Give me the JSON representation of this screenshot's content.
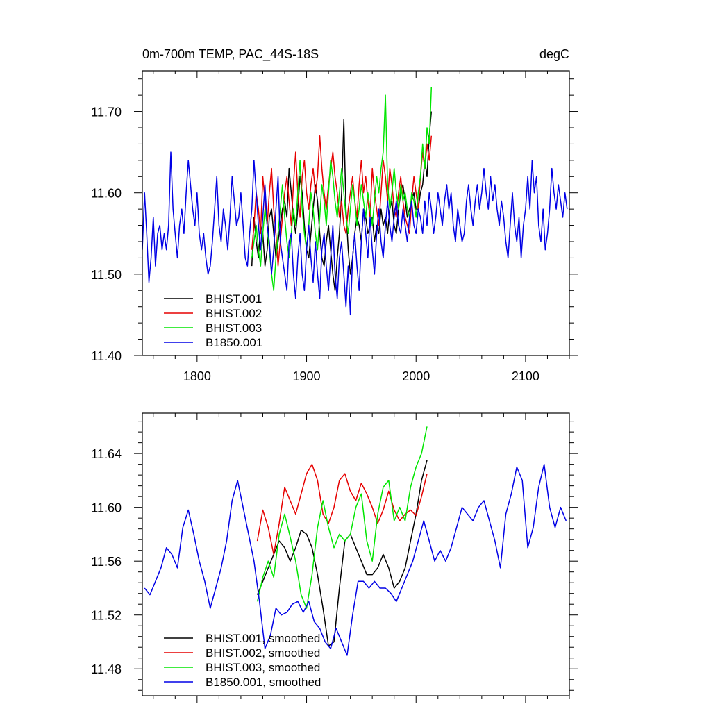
{
  "chart_data": [
    {
      "type": "line",
      "title": "0m-700m TEMP, PAC_44S-18S",
      "units": "degC",
      "xlim": [
        1750,
        2140
      ],
      "ylim": [
        11.4,
        11.75
      ],
      "x_ticks": [
        1800,
        1900,
        2000,
        2100
      ],
      "x_tick_labels": [
        "1800",
        "1900",
        "2000",
        "2100"
      ],
      "y_ticks": [
        11.4,
        11.5,
        11.6,
        11.7
      ],
      "y_tick_labels": [
        "11.40",
        "11.50",
        "11.60",
        "11.70"
      ],
      "show_x_tick_labels": true,
      "legend_position": "bottom-left",
      "series": [
        {
          "name": "BHIST.001",
          "color": "#000000",
          "x_start": 1850,
          "x_end": 2014,
          "step": 2,
          "values": [
            11.51,
            11.57,
            11.54,
            11.52,
            11.56,
            11.55,
            11.51,
            11.53,
            11.57,
            11.58,
            11.55,
            11.52,
            11.54,
            11.56,
            11.58,
            11.59,
            11.57,
            11.63,
            11.6,
            11.57,
            11.55,
            11.58,
            11.62,
            11.6,
            11.56,
            11.53,
            11.52,
            11.55,
            11.58,
            11.61,
            11.59,
            11.55,
            11.52,
            11.51,
            11.54,
            11.56,
            11.53,
            11.5,
            11.48,
            11.52,
            11.55,
            11.6,
            11.69,
            11.58,
            11.53,
            11.5,
            11.52,
            11.55,
            11.57,
            11.56,
            11.54,
            11.58,
            11.57,
            11.55,
            11.56,
            11.57,
            11.54,
            11.56,
            11.55,
            11.58,
            11.56,
            11.57,
            11.55,
            11.58,
            11.59,
            11.56,
            11.55,
            11.58,
            11.6,
            11.61,
            11.59,
            11.57,
            11.58,
            11.59,
            11.6,
            11.58,
            11.58,
            11.6,
            11.61,
            11.64,
            11.62,
            11.67,
            11.7
          ]
        },
        {
          "name": "BHIST.002",
          "color": "#e60000",
          "x_start": 1850,
          "x_end": 2014,
          "step": 2,
          "values": [
            11.53,
            11.56,
            11.6,
            11.58,
            11.55,
            11.62,
            11.59,
            11.56,
            11.6,
            11.63,
            11.58,
            11.55,
            11.51,
            11.54,
            11.57,
            11.6,
            11.62,
            11.59,
            11.56,
            11.61,
            11.65,
            11.6,
            11.57,
            11.62,
            11.64,
            11.6,
            11.58,
            11.61,
            11.63,
            11.6,
            11.62,
            11.67,
            11.63,
            11.6,
            11.58,
            11.61,
            11.63,
            11.65,
            11.62,
            11.6,
            11.57,
            11.59,
            11.56,
            11.55,
            11.58,
            11.6,
            11.62,
            11.59,
            11.57,
            11.61,
            11.64,
            11.6,
            11.62,
            11.59,
            11.57,
            11.63,
            11.6,
            11.58,
            11.56,
            11.6,
            11.64,
            11.62,
            11.59,
            11.63,
            11.61,
            11.58,
            11.57,
            11.6,
            11.62,
            11.59,
            11.57,
            11.56,
            11.55,
            11.59,
            11.62,
            11.6,
            11.58,
            11.62,
            11.65,
            11.63,
            11.66,
            11.64,
            11.67
          ]
        },
        {
          "name": "BHIST.003",
          "color": "#00e600",
          "x_start": 1850,
          "x_end": 2014,
          "step": 2,
          "values": [
            11.52,
            11.54,
            11.56,
            11.53,
            11.51,
            11.55,
            11.58,
            11.56,
            11.53,
            11.5,
            11.48,
            11.52,
            11.55,
            11.58,
            11.61,
            11.57,
            11.54,
            11.52,
            11.55,
            11.58,
            11.56,
            11.6,
            11.64,
            11.58,
            11.55,
            11.53,
            11.56,
            11.6,
            11.58,
            11.55,
            11.53,
            11.57,
            11.61,
            11.59,
            11.56,
            11.6,
            11.64,
            11.62,
            11.59,
            11.57,
            11.6,
            11.63,
            11.6,
            11.57,
            11.55,
            11.58,
            11.61,
            11.59,
            11.56,
            11.58,
            11.61,
            11.59,
            11.57,
            11.6,
            11.58,
            11.56,
            11.59,
            11.62,
            11.6,
            11.63,
            11.65,
            11.72,
            11.61,
            11.58,
            11.6,
            11.63,
            11.6,
            11.58,
            11.61,
            11.59,
            11.6,
            11.58,
            11.57,
            11.6,
            11.59,
            11.57,
            11.6,
            11.62,
            11.66,
            11.63,
            11.68,
            11.66,
            11.73
          ]
        },
        {
          "name": "B1850.001",
          "color": "#0000e6",
          "x_start": 1750,
          "x_end": 2140,
          "step": 2,
          "values": [
            11.53,
            11.6,
            11.55,
            11.49,
            11.52,
            11.57,
            11.51,
            11.55,
            11.56,
            11.53,
            11.55,
            11.53,
            11.56,
            11.65,
            11.58,
            11.55,
            11.52,
            11.56,
            11.58,
            11.55,
            11.6,
            11.64,
            11.61,
            11.58,
            11.56,
            11.6,
            11.55,
            11.53,
            11.55,
            11.52,
            11.5,
            11.51,
            11.54,
            11.58,
            11.62,
            11.56,
            11.54,
            11.58,
            11.56,
            11.53,
            11.57,
            11.62,
            11.59,
            11.56,
            11.57,
            11.6,
            11.56,
            11.52,
            11.51,
            11.55,
            11.58,
            11.64,
            11.6,
            11.56,
            11.53,
            11.57,
            11.61,
            11.56,
            11.54,
            11.5,
            11.53,
            11.58,
            11.62,
            11.54,
            11.52,
            11.5,
            11.48,
            11.54,
            11.55,
            11.5,
            11.47,
            11.52,
            11.55,
            11.5,
            11.48,
            11.53,
            11.56,
            11.52,
            11.49,
            11.54,
            11.5,
            11.47,
            11.53,
            11.55,
            11.51,
            11.48,
            11.52,
            11.56,
            11.5,
            11.47,
            11.52,
            11.54,
            11.5,
            11.46,
            11.51,
            11.45,
            11.52,
            11.55,
            11.51,
            11.48,
            11.54,
            11.58,
            11.55,
            11.52,
            11.57,
            11.53,
            11.5,
            11.55,
            11.58,
            11.54,
            11.52,
            11.56,
            11.59,
            11.56,
            11.54,
            11.57,
            11.59,
            11.56,
            11.55,
            11.58,
            11.56,
            11.54,
            11.57,
            11.59,
            11.56,
            11.55,
            11.58,
            11.57,
            11.55,
            11.59,
            11.56,
            11.6,
            11.58,
            11.55,
            11.57,
            11.6,
            11.58,
            11.56,
            11.59,
            11.61,
            11.58,
            11.6,
            11.56,
            11.54,
            11.58,
            11.56,
            11.54,
            11.55,
            11.59,
            11.61,
            11.58,
            11.56,
            11.59,
            11.61,
            11.58,
            11.6,
            11.63,
            11.6,
            11.58,
            11.62,
            11.59,
            11.61,
            11.58,
            11.56,
            11.59,
            11.57,
            11.54,
            11.52,
            11.56,
            11.6,
            11.56,
            11.54,
            11.57,
            11.52,
            11.56,
            11.58,
            11.62,
            11.58,
            11.64,
            11.6,
            11.62,
            11.56,
            11.54,
            11.58,
            11.53,
            11.55,
            11.58,
            11.63,
            11.6,
            11.58,
            11.61,
            11.59,
            11.57,
            11.6,
            11.58
          ]
        }
      ]
    },
    {
      "type": "line",
      "title": "",
      "units": "",
      "xlim": [
        1750,
        2140
      ],
      "ylim": [
        11.46,
        11.67
      ],
      "x_ticks": [
        1800,
        1900,
        2000,
        2100
      ],
      "x_tick_labels": [
        "",
        "",
        "",
        ""
      ],
      "y_ticks": [
        11.48,
        11.52,
        11.56,
        11.6,
        11.64
      ],
      "y_tick_labels": [
        "11.48",
        "11.52",
        "11.56",
        "11.60",
        "11.64"
      ],
      "show_x_tick_labels": false,
      "legend_position": "bottom-left",
      "series": [
        {
          "name": "BHIST.001, smoothed",
          "color": "#000000",
          "x_start": 1855,
          "x_end": 2009,
          "step": 5,
          "values": [
            11.535,
            11.545,
            11.555,
            11.565,
            11.575,
            11.57,
            11.56,
            11.57,
            11.583,
            11.58,
            11.57,
            11.55,
            11.525,
            11.497,
            11.5,
            11.54,
            11.575,
            11.58,
            11.57,
            11.56,
            11.55,
            11.55,
            11.555,
            11.565,
            11.555,
            11.54,
            11.545,
            11.555,
            11.575,
            11.595,
            11.62,
            11.635
          ]
        },
        {
          "name": "BHIST.002, smoothed",
          "color": "#e60000",
          "x_start": 1855,
          "x_end": 2009,
          "step": 5,
          "values": [
            11.575,
            11.598,
            11.585,
            11.565,
            11.588,
            11.615,
            11.605,
            11.595,
            11.61,
            11.625,
            11.632,
            11.62,
            11.595,
            11.588,
            11.6,
            11.62,
            11.625,
            11.612,
            11.605,
            11.618,
            11.61,
            11.6,
            11.588,
            11.598,
            11.612,
            11.598,
            11.59,
            11.595,
            11.598,
            11.594,
            11.608,
            11.625
          ]
        },
        {
          "name": "BHIST.003, smoothed",
          "color": "#00e600",
          "x_start": 1855,
          "x_end": 2009,
          "step": 5,
          "values": [
            11.53,
            11.548,
            11.56,
            11.548,
            11.58,
            11.595,
            11.578,
            11.56,
            11.535,
            11.525,
            11.55,
            11.585,
            11.605,
            11.585,
            11.57,
            11.58,
            11.575,
            11.58,
            11.6,
            11.61,
            11.575,
            11.56,
            11.595,
            11.615,
            11.62,
            11.59,
            11.6,
            11.59,
            11.615,
            11.63,
            11.64,
            11.66
          ]
        },
        {
          "name": "B1850.001, smoothed",
          "color": "#0000e6",
          "x_start": 1752,
          "x_end": 2137,
          "step": 5,
          "values": [
            11.54,
            11.535,
            11.545,
            11.555,
            11.57,
            11.565,
            11.555,
            11.585,
            11.598,
            11.58,
            11.56,
            11.545,
            11.525,
            11.54,
            11.555,
            11.575,
            11.605,
            11.62,
            11.6,
            11.58,
            11.56,
            11.53,
            11.495,
            11.505,
            11.525,
            11.52,
            11.522,
            11.528,
            11.53,
            11.522,
            11.53,
            11.515,
            11.51,
            11.5,
            11.495,
            11.51,
            11.5,
            11.49,
            11.52,
            11.545,
            11.545,
            11.54,
            11.545,
            11.54,
            11.54,
            11.536,
            11.53,
            11.54,
            11.55,
            11.56,
            11.575,
            11.59,
            11.575,
            11.56,
            11.568,
            11.56,
            11.57,
            11.585,
            11.6,
            11.595,
            11.59,
            11.6,
            11.605,
            11.59,
            11.575,
            11.555,
            11.595,
            11.61,
            11.63,
            11.62,
            11.57,
            11.585,
            11.615,
            11.632,
            11.6,
            11.585,
            11.6,
            11.59
          ]
        }
      ]
    }
  ]
}
